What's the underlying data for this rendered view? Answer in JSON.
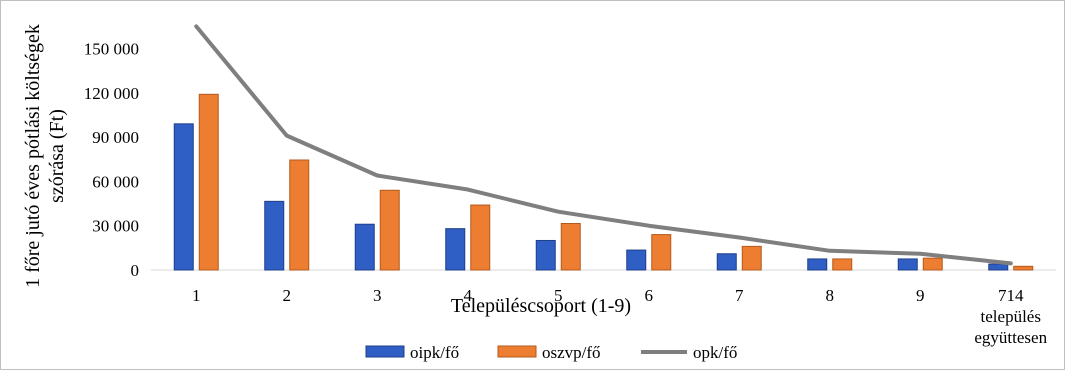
{
  "chart_data": {
    "type": "bar",
    "title": "",
    "xlabel": "Településcsoport (1-9)",
    "ylabel_lines": [
      "1 főre jutó éves pótlási költségek",
      "szórása (Ft)"
    ],
    "categories": [
      [
        "1"
      ],
      [
        "2"
      ],
      [
        "3"
      ],
      [
        "4"
      ],
      [
        "5"
      ],
      [
        "6"
      ],
      [
        "7"
      ],
      [
        "8"
      ],
      [
        "9"
      ],
      [
        "714",
        "település",
        "együttesen"
      ]
    ],
    "y_ticks": [
      {
        "value": 0,
        "label": "0"
      },
      {
        "value": 30000,
        "label": "30 000"
      },
      {
        "value": 60000,
        "label": "60 000"
      },
      {
        "value": 90000,
        "label": "90 000"
      },
      {
        "value": 120000,
        "label": "120 000"
      },
      {
        "value": 150000,
        "label": "150 000"
      }
    ],
    "ylim": [
      0,
      170000
    ],
    "grid": false,
    "legend_position": "bottom",
    "series": [
      {
        "name": "oipk/fő",
        "type": "bar",
        "color": "#2f5fc4",
        "values": [
          99000,
          46500,
          31000,
          28000,
          20000,
          13500,
          11000,
          7500,
          7500,
          4000
        ]
      },
      {
        "name": "oszvp/fő",
        "type": "bar",
        "color": "#ed7d31",
        "values": [
          119000,
          74500,
          54000,
          44000,
          31500,
          24000,
          16000,
          7500,
          8000,
          2500
        ]
      },
      {
        "name": "opk/fő",
        "type": "line",
        "color": "#7f7f7f",
        "values": [
          165000,
          91000,
          64000,
          54500,
          39500,
          30000,
          22000,
          13000,
          11000,
          4500
        ]
      }
    ]
  }
}
